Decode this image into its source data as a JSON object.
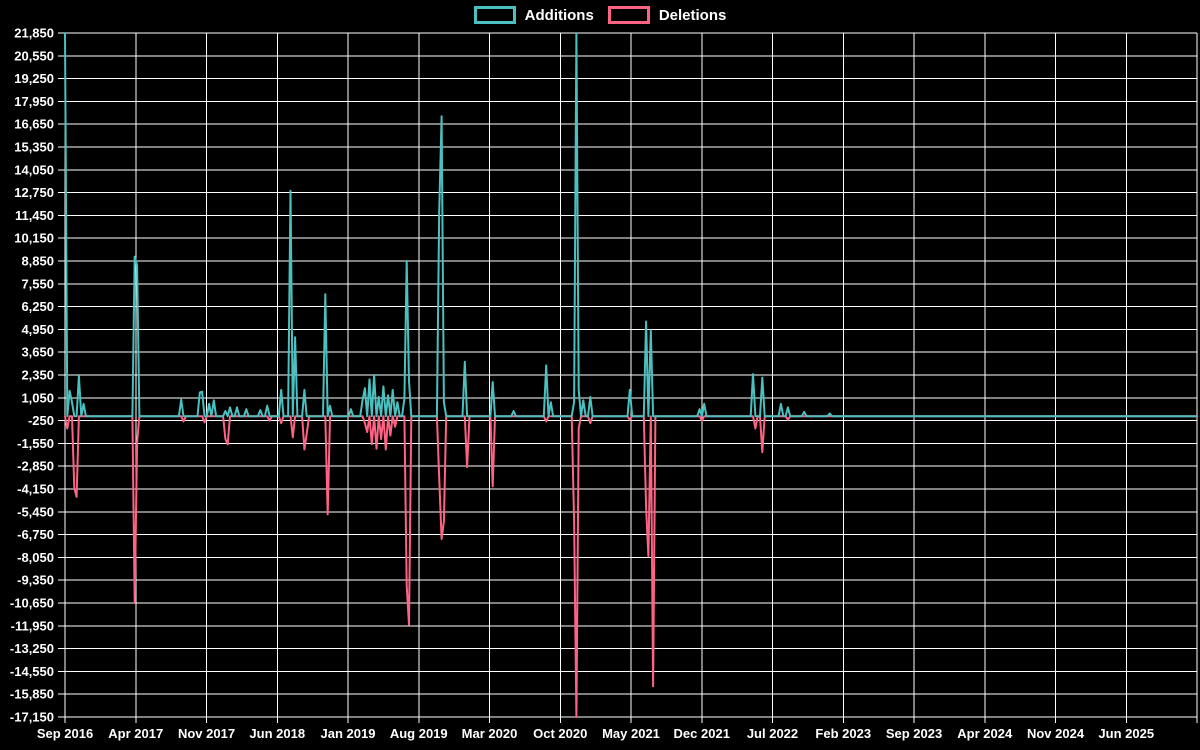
{
  "legend": {
    "items": [
      {
        "label": "Additions",
        "color": "#4bc0c0"
      },
      {
        "label": "Deletions",
        "color": "#ff6384"
      }
    ]
  },
  "chart_data": {
    "type": "line",
    "title": "",
    "xlabel": "",
    "ylabel": "",
    "background_color": "#000000",
    "grid_color": "#ffffff",
    "text_color": "#ffffff",
    "grid": true,
    "legend_position": "top",
    "y_min": -17150,
    "y_max": 21850,
    "y_step": 1300,
    "y_tick_values": [
      21850,
      20550,
      19250,
      17950,
      16650,
      15350,
      14050,
      12750,
      11450,
      10150,
      8850,
      7550,
      6250,
      4950,
      3650,
      2350,
      1050,
      -250,
      -1550,
      -2850,
      -4150,
      -5450,
      -6750,
      -8050,
      -9350,
      -10650,
      -11950,
      -13250,
      -14550,
      -15850,
      -17150
    ],
    "x_tick_labels": [
      "Sep 2016",
      "Apr 2017",
      "Nov 2017",
      "Jun 2018",
      "Jan 2019",
      "Aug 2019",
      "Mar 2020",
      "Oct 2020",
      "May 2021",
      "Dec 2021",
      "Jul 2022",
      "Feb 2023",
      "Sep 2023",
      "Apr 2024",
      "Nov 2024",
      "Jun 2025"
    ],
    "x_unit": "week",
    "n_weeks": 488,
    "weeks_per_tick": 30.4375,
    "series": [
      {
        "name": "Deletions",
        "color": "#ff6384",
        "baseline": 0,
        "points_sparse": [
          [
            1,
            -700
          ],
          [
            4,
            -4100
          ],
          [
            5,
            -4600
          ],
          [
            30,
            -10650
          ],
          [
            31,
            -1500
          ],
          [
            51,
            -300
          ],
          [
            60,
            -350
          ],
          [
            69,
            -1300
          ],
          [
            70,
            -1600
          ],
          [
            88,
            -250
          ],
          [
            93,
            -400
          ],
          [
            98,
            -1200
          ],
          [
            103,
            -1900
          ],
          [
            104,
            -1000
          ],
          [
            113,
            -5600
          ],
          [
            129,
            -400
          ],
          [
            130,
            -900
          ],
          [
            132,
            -1600
          ],
          [
            134,
            -1850
          ],
          [
            136,
            -1300
          ],
          [
            138,
            -1900
          ],
          [
            140,
            -1100
          ],
          [
            142,
            -600
          ],
          [
            147,
            -9650
          ],
          [
            148,
            -11900
          ],
          [
            161,
            -3500
          ],
          [
            162,
            -7000
          ],
          [
            163,
            -6000
          ],
          [
            173,
            -2900
          ],
          [
            184,
            -4000
          ],
          [
            207,
            -300
          ],
          [
            219,
            -6000
          ],
          [
            220,
            -17150
          ],
          [
            221,
            -700
          ],
          [
            226,
            -400
          ],
          [
            243,
            -200
          ],
          [
            250,
            -5200
          ],
          [
            251,
            -8000
          ],
          [
            253,
            -15400
          ],
          [
            274,
            -250
          ],
          [
            297,
            -700
          ],
          [
            300,
            -2050
          ],
          [
            311,
            -200
          ]
        ]
      },
      {
        "name": "Additions",
        "color": "#4bc0c0",
        "baseline": 0,
        "points_sparse": [
          [
            0,
            21850
          ],
          [
            2,
            1450
          ],
          [
            3,
            800
          ],
          [
            6,
            2300
          ],
          [
            8,
            700
          ],
          [
            30,
            9100
          ],
          [
            31,
            8600
          ],
          [
            50,
            950
          ],
          [
            58,
            1350
          ],
          [
            59,
            1400
          ],
          [
            62,
            700
          ],
          [
            64,
            900
          ],
          [
            69,
            300
          ],
          [
            71,
            500
          ],
          [
            74,
            500
          ],
          [
            78,
            400
          ],
          [
            84,
            350
          ],
          [
            87,
            600
          ],
          [
            93,
            1500
          ],
          [
            97,
            12850
          ],
          [
            99,
            4500
          ],
          [
            103,
            1500
          ],
          [
            112,
            6950
          ],
          [
            114,
            600
          ],
          [
            123,
            400
          ],
          [
            128,
            900
          ],
          [
            129,
            1600
          ],
          [
            131,
            2100
          ],
          [
            133,
            2350
          ],
          [
            135,
            1100
          ],
          [
            137,
            1700
          ],
          [
            139,
            1200
          ],
          [
            141,
            1500
          ],
          [
            143,
            800
          ],
          [
            146,
            1000
          ],
          [
            147,
            8850
          ],
          [
            148,
            2000
          ],
          [
            161,
            11650
          ],
          [
            162,
            17100
          ],
          [
            163,
            800
          ],
          [
            172,
            3100
          ],
          [
            184,
            1950
          ],
          [
            193,
            300
          ],
          [
            207,
            2900
          ],
          [
            209,
            800
          ],
          [
            219,
            800
          ],
          [
            220,
            21800
          ],
          [
            221,
            1500
          ],
          [
            223,
            900
          ],
          [
            226,
            1100
          ],
          [
            243,
            1500
          ],
          [
            250,
            5400
          ],
          [
            252,
            4900
          ],
          [
            273,
            400
          ],
          [
            275,
            700
          ],
          [
            296,
            2400
          ],
          [
            300,
            2200
          ],
          [
            308,
            700
          ],
          [
            311,
            500
          ],
          [
            318,
            250
          ],
          [
            329,
            150
          ]
        ]
      }
    ]
  }
}
